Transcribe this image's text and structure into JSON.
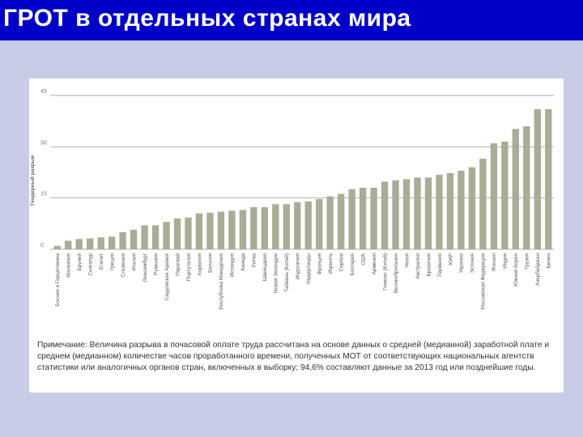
{
  "slide": {
    "title": "ГРОТ в отдельных странах мира"
  },
  "note": {
    "text": "Примечание: Величина разрыва в почасовой оплате труда рассчитана на основе данных о средней (медианной) заработной плате и среднем (медианном) количестве часов проработанного времени, полученных МОТ от соответствующих национальных агентств статистики или аналогичных органов стран, включенных в выборку; 94,6% составляют данные за 2013 год или позднейшие годы."
  },
  "colors": {
    "title_bar": "#0000c8",
    "background": "#c8cce6",
    "bar": "#a8ad96"
  },
  "chart_data": {
    "type": "bar",
    "title": "",
    "xlabel": "",
    "ylabel": "Гендерный разрыв",
    "ylim": [
      0,
      45
    ],
    "yticks": [
      0,
      15,
      30,
      45
    ],
    "grid": true,
    "categories": [
      "Босния и Герцеговина",
      "Малайзия",
      "Бруней",
      "Сингапур",
      "Египет",
      "Греция",
      "Словения",
      "Италия",
      "Люксембург",
      "Румыния",
      "Саудовская Аравия",
      "Парагвай",
      "Португалия",
      "Хорватия",
      "Бельгия",
      "Республика Македония",
      "Исландия",
      "Канада",
      "Литва",
      "Швейцария",
      "Новая Зеландия",
      "Тайвань (Китай)",
      "Индонезия",
      "Нидерланды",
      "Франция",
      "Израиль",
      "Сербия",
      "Болгария",
      "США",
      "Армения",
      "Гонконг (Китай)",
      "Великобритания",
      "Чехия",
      "Австралия",
      "Бразилия",
      "Германия",
      "ЮАР",
      "Украина",
      "Эстония",
      "Российская Федерация",
      "Япония",
      "Индия",
      "Южная Корея",
      "Грузия",
      "Азербайджан",
      "Бенин"
    ],
    "values": [
      1,
      2.5,
      3,
      3.2,
      3.5,
      3.7,
      5,
      5.7,
      7,
      7,
      8,
      9,
      9.3,
      10.5,
      10.7,
      11,
      11.3,
      11.5,
      12.3,
      12.3,
      13.2,
      13.2,
      13.8,
      14,
      14.7,
      15.5,
      16.2,
      17.6,
      18,
      18,
      19.8,
      20.2,
      20.5,
      21,
      21,
      21.8,
      22.3,
      23,
      24,
      26.5,
      31,
      31.5,
      35.2,
      36,
      41,
      41
    ]
  }
}
